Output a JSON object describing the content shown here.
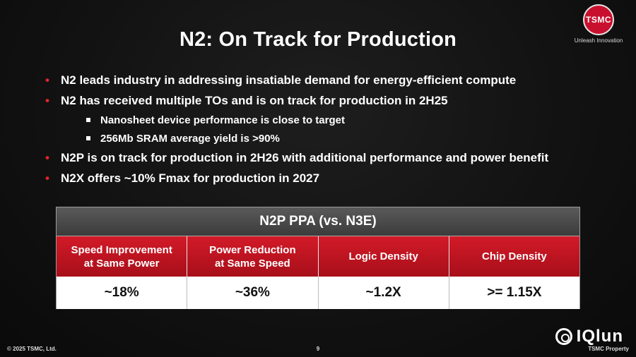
{
  "slide": {
    "title": "N2: On Track for Production",
    "logo": {
      "badge_text": "TSMC",
      "tagline": "Unleash Innovation"
    },
    "bullets": [
      "N2 leads industry in addressing insatiable demand for energy-efficient compute",
      "N2 has received multiple TOs and is on track for production in 2H25",
      "N2P is on track for production in 2H26 with additional performance and power benefit",
      "N2X offers ~10% Fmax for production in 2027"
    ],
    "sub_bullets": [
      "Nanosheet device performance is close to target",
      "256Mb SRAM average yield is >90%"
    ],
    "table": {
      "title": "N2P PPA (vs. N3E)",
      "headers": [
        [
          "Speed Improvement",
          "at Same Power"
        ],
        [
          "Power Reduction",
          "at Same Speed"
        ],
        [
          "Logic Density"
        ],
        [
          "Chip Density"
        ]
      ],
      "values": [
        "~18%",
        "~36%",
        "~1.2X",
        ">= 1.15X"
      ]
    },
    "footer": {
      "copyright": "© 2025 TSMC, Ltd.",
      "page": "9",
      "property": "TSMC Property"
    },
    "watermark": "IQlun",
    "colors": {
      "accent_red": "#c8102e",
      "bullet_red": "#e2252c",
      "header_gray": "#4a4a4a"
    }
  }
}
